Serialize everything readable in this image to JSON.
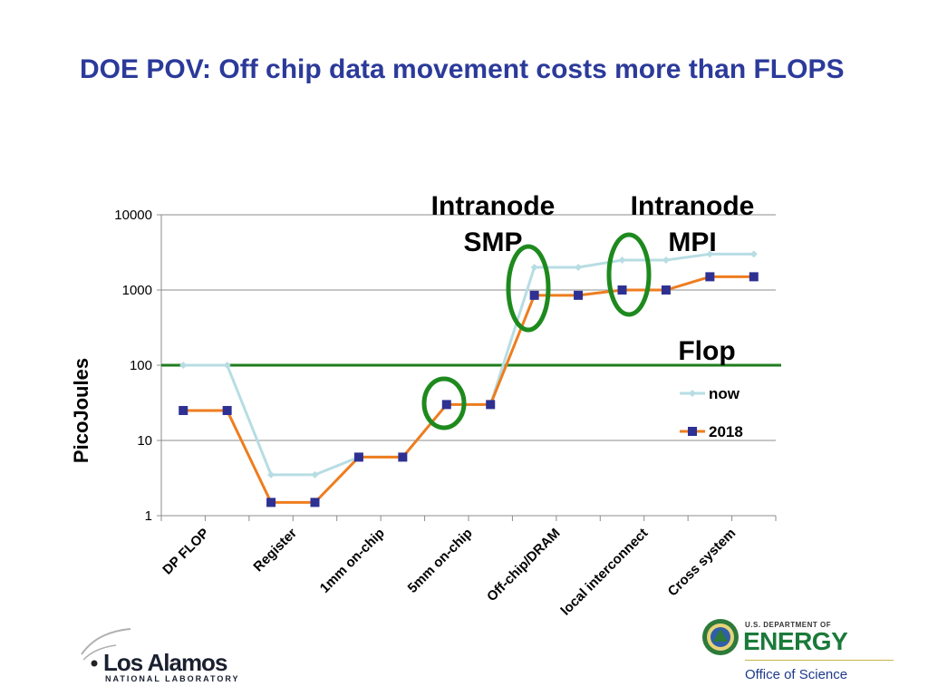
{
  "title": "DOE POV: Off chip data movement costs more than FLOPS",
  "chart_data": {
    "type": "line",
    "yscale": "log",
    "ylim": [
      1,
      10000
    ],
    "yticks": [
      1,
      10,
      100,
      1000,
      10000
    ],
    "ytick_labels": [
      "1",
      "10",
      "100",
      "1000",
      "10000"
    ],
    "ylabel": "PicoJoules",
    "xlabel": "",
    "categories": [
      "DP FLOP",
      "",
      "Register",
      "",
      "1mm on-chip",
      "",
      "5mm on-chip",
      "",
      "Off-chip/DRAM",
      "",
      "local interconnect",
      "",
      "Cross system",
      ""
    ],
    "series": [
      {
        "name": "now",
        "color": "#b7dde3",
        "marker": "diamond",
        "values": [
          100,
          100,
          3.5,
          3.5,
          6,
          6,
          30,
          30,
          2000,
          2000,
          2500,
          2500,
          3000,
          3000
        ]
      },
      {
        "name": "2018",
        "color": "#ee7d1f",
        "marker": "square",
        "marker_color": "#2e3192",
        "values": [
          25,
          25,
          1.5,
          1.5,
          6,
          6,
          30,
          30,
          850,
          850,
          1000,
          1000,
          1500,
          1500
        ]
      }
    ],
    "reference_line": {
      "value": 100,
      "color": "#1e7d1e",
      "label": "Flop"
    },
    "annotations": [
      {
        "text_lines": [
          "Intranode",
          "SMP"
        ]
      },
      {
        "text_lines": [
          "Intranode",
          "MPI"
        ]
      }
    ],
    "highlight_color": "#1e8a1e",
    "legend_position": "right",
    "grid": {
      "horizontal": true,
      "color": "#8c8c8c"
    }
  },
  "logos": {
    "lanl": {
      "name": "Los Alamos",
      "sub": "NATIONAL LABORATORY"
    },
    "doe": {
      "dept": "U.S. DEPARTMENT OF",
      "name": "ENERGY",
      "office": "Office of Science"
    }
  }
}
